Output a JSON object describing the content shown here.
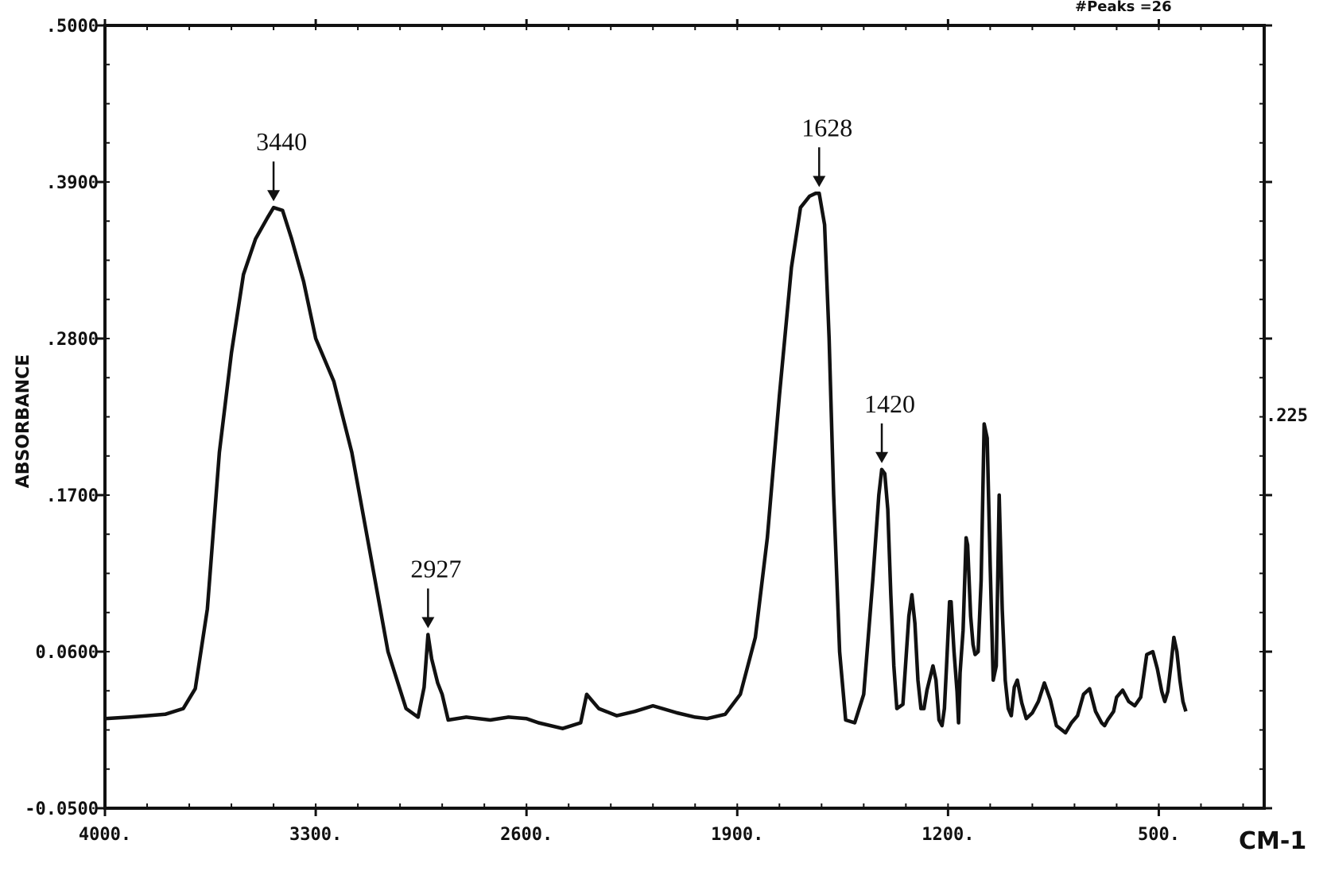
{
  "chart_data": {
    "type": "line",
    "top_note": "#Peaks =26",
    "ylabel": "ABSORBANCE",
    "xlabel": "CM-1",
    "right_marker": ".225",
    "xlim": [
      4000,
      150
    ],
    "ylim": [
      -0.05,
      0.5
    ],
    "x_ticks": [
      "4000.",
      "3300.",
      "2600.",
      "1900.",
      "1200.",
      "500."
    ],
    "x_tick_values": [
      4000,
      3300,
      2600,
      1900,
      1200,
      500
    ],
    "y_ticks": [
      ".5000",
      ".3900",
      ".2800",
      ".1700",
      "0.0600",
      "-0.0500"
    ],
    "y_tick_values": [
      0.5,
      0.39,
      0.28,
      0.17,
      0.06,
      -0.05
    ],
    "grid": false,
    "peak_annotations": [
      {
        "label": "3440",
        "x": 3440,
        "y": 0.372
      },
      {
        "label": "2927",
        "x": 2927,
        "y": 0.072
      },
      {
        "label": "1628",
        "x": 1628,
        "y": 0.382
      },
      {
        "label": "1420",
        "x": 1420,
        "y": 0.188
      }
    ],
    "series": [
      {
        "x": [
          4000,
          3920,
          3860,
          3800,
          3740,
          3700,
          3660,
          3620,
          3580,
          3540,
          3500,
          3460,
          3440,
          3410,
          3380,
          3340,
          3300,
          3240,
          3180,
          3120,
          3060,
          3000,
          2960,
          2940,
          2927,
          2915,
          2895,
          2880,
          2860,
          2800,
          2720,
          2660,
          2600,
          2560,
          2480,
          2420,
          2400,
          2380,
          2360,
          2300,
          2240,
          2180,
          2100,
          2040,
          2000,
          1940,
          1890,
          1840,
          1800,
          1760,
          1720,
          1690,
          1660,
          1640,
          1628,
          1610,
          1595,
          1580,
          1560,
          1540,
          1510,
          1480,
          1450,
          1430,
          1420,
          1410,
          1400,
          1390,
          1380,
          1370,
          1350,
          1330,
          1320,
          1310,
          1300,
          1290,
          1280,
          1270,
          1250,
          1240,
          1230,
          1220,
          1212,
          1205,
          1195,
          1190,
          1180,
          1170,
          1165,
          1160,
          1150,
          1140,
          1135,
          1125,
          1117,
          1110,
          1100,
          1090,
          1080,
          1070,
          1060,
          1050,
          1040,
          1030,
          1020,
          1010,
          1000,
          990,
          980,
          970,
          955,
          940,
          920,
          900,
          880,
          860,
          840,
          810,
          790,
          770,
          750,
          730,
          710,
          690,
          680,
          670,
          650,
          640,
          620,
          600,
          580,
          560,
          540,
          520,
          505,
          490,
          480,
          470,
          460,
          450,
          440,
          430,
          420,
          410
        ],
        "y": [
          0.013,
          0.014,
          0.015,
          0.016,
          0.02,
          0.034,
          0.09,
          0.2,
          0.27,
          0.325,
          0.35,
          0.365,
          0.372,
          0.37,
          0.35,
          0.32,
          0.28,
          0.25,
          0.2,
          0.13,
          0.06,
          0.02,
          0.014,
          0.035,
          0.072,
          0.055,
          0.038,
          0.03,
          0.012,
          0.014,
          0.012,
          0.014,
          0.013,
          0.01,
          0.006,
          0.01,
          0.03,
          0.025,
          0.02,
          0.015,
          0.018,
          0.022,
          0.017,
          0.014,
          0.013,
          0.016,
          0.03,
          0.07,
          0.14,
          0.24,
          0.33,
          0.372,
          0.38,
          0.382,
          0.382,
          0.36,
          0.28,
          0.17,
          0.06,
          0.012,
          0.01,
          0.03,
          0.11,
          0.17,
          0.188,
          0.185,
          0.16,
          0.1,
          0.05,
          0.02,
          0.023,
          0.085,
          0.1,
          0.08,
          0.04,
          0.02,
          0.02,
          0.033,
          0.05,
          0.04,
          0.012,
          0.008,
          0.02,
          0.05,
          0.095,
          0.095,
          0.06,
          0.032,
          0.01,
          0.045,
          0.075,
          0.14,
          0.135,
          0.085,
          0.065,
          0.058,
          0.06,
          0.11,
          0.22,
          0.21,
          0.12,
          0.04,
          0.05,
          0.17,
          0.09,
          0.04,
          0.02,
          0.015,
          0.035,
          0.04,
          0.024,
          0.013,
          0.017,
          0.025,
          0.038,
          0.026,
          0.008,
          0.003,
          0.01,
          0.015,
          0.03,
          0.034,
          0.018,
          0.01,
          0.008,
          0.012,
          0.018,
          0.028,
          0.033,
          0.025,
          0.022,
          0.028,
          0.058,
          0.06,
          0.048,
          0.032,
          0.025,
          0.032,
          0.05,
          0.07,
          0.06,
          0.04,
          0.025,
          0.018
        ]
      }
    ]
  }
}
